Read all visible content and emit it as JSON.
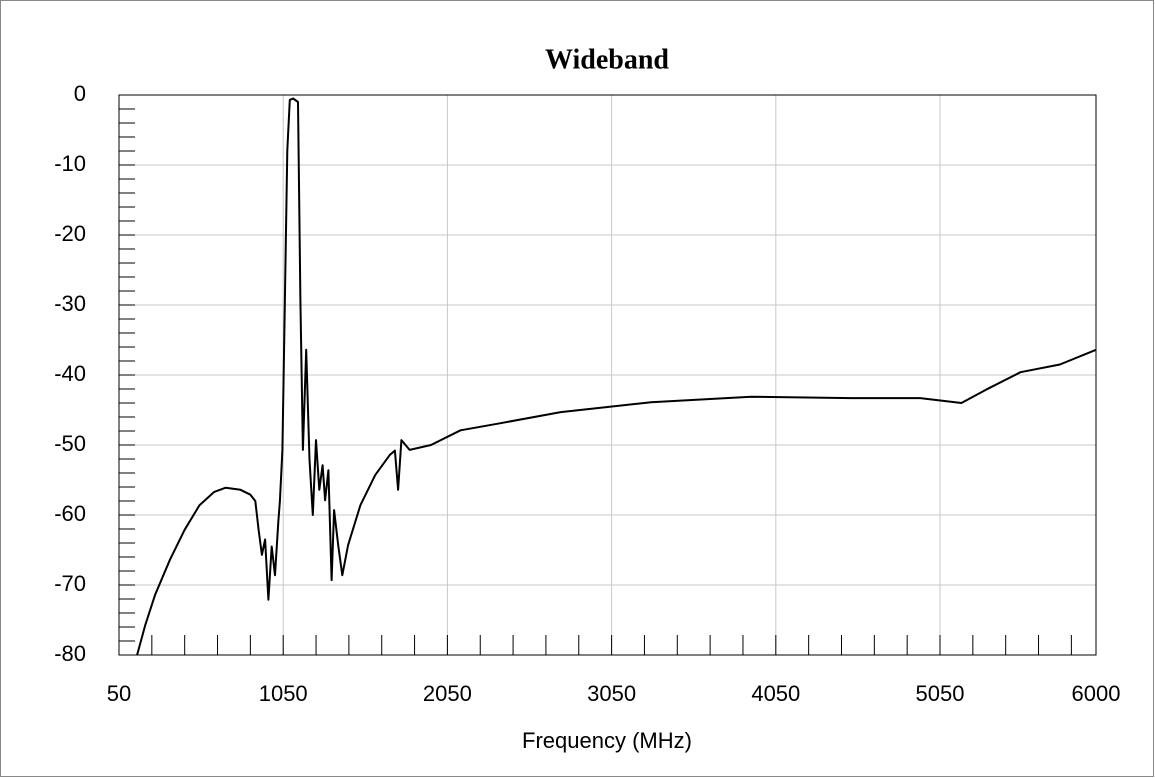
{
  "chart_data": {
    "type": "line",
    "title": "Wideband",
    "xlabel": "Frequency (MHz)",
    "xlim": [
      50,
      6000
    ],
    "ylim": [
      -80,
      0
    ],
    "xticks": [
      50,
      1050,
      2050,
      3050,
      4050,
      5050,
      6000
    ],
    "yticks": [
      0,
      -10,
      -20,
      -30,
      -40,
      -50,
      -60,
      -70,
      -80
    ],
    "xminorticks": [
      250,
      450,
      650,
      850,
      1250,
      1450,
      1650,
      1850,
      2250,
      2450,
      2650,
      2850,
      3250,
      3450,
      3650,
      3850,
      4250,
      4450,
      4650,
      4850,
      5250,
      5450,
      5650,
      5850
    ],
    "yminorticks": [
      -2,
      -4,
      -6,
      -8,
      -12,
      -14,
      -16,
      -18,
      -22,
      -24,
      -26,
      -28,
      -32,
      -34,
      -36,
      -38,
      -42,
      -44,
      -46,
      -48,
      -52,
      -54,
      -56,
      -58,
      -62,
      -64,
      -66,
      -68,
      -72,
      -74,
      -76,
      -78
    ],
    "grid": true,
    "series": [
      {
        "color": "#000000",
        "x": [
          160,
          210,
          270,
          360,
          450,
          540,
          630,
          700,
          790,
          850,
          880,
          900,
          920,
          940,
          960,
          980,
          1000,
          1020,
          1030,
          1045,
          1060,
          1075,
          1090,
          1110,
          1140,
          1155,
          1170,
          1190,
          1210,
          1230,
          1250,
          1270,
          1290,
          1305,
          1325,
          1345,
          1360,
          1385,
          1410,
          1445,
          1520,
          1610,
          1700,
          1730,
          1750,
          1770,
          1820,
          1950,
          2130,
          2370,
          2740,
          3290,
          3900,
          4510,
          4930,
          5180,
          5330,
          5540,
          5780,
          6000
        ],
        "values": [
          -80,
          -75.7,
          -71.4,
          -66.4,
          -62.1,
          -58.6,
          -56.7,
          -56.1,
          -56.4,
          -57.1,
          -58,
          -62.1,
          -65.7,
          -63.5,
          -72.1,
          -64.5,
          -68.6,
          -61,
          -58,
          -50.7,
          -30,
          -7.9,
          -0.7,
          -0.5,
          -1,
          -29.3,
          -50.7,
          -36.4,
          -52.1,
          -60,
          -49.3,
          -56.4,
          -52.9,
          -57.9,
          -53.6,
          -69.3,
          -59.3,
          -64.3,
          -68.6,
          -64.3,
          -58.6,
          -54.3,
          -51.4,
          -50.8,
          -56.4,
          -49.3,
          -50.7,
          -50,
          -47.9,
          -46.9,
          -45.3,
          -43.9,
          -43.1,
          -43.3,
          -43.3,
          -44,
          -42.1,
          -39.6,
          -38.5,
          -36.4
        ]
      }
    ]
  }
}
